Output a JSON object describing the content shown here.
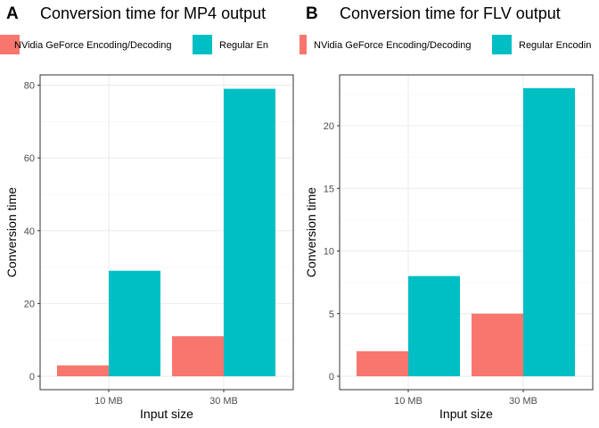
{
  "colors": {
    "nvidia": "#F8766D",
    "regular": "#00BFC4"
  },
  "chart_data": [
    {
      "tag": "A",
      "type": "bar",
      "title": "Conversion time for MP4 output",
      "xlabel": "Input size",
      "ylabel": "Conversion time",
      "categories": [
        "10 MB",
        "30 MB"
      ],
      "ylim": [
        0,
        80
      ],
      "yticks": [
        0,
        20,
        40,
        60,
        80
      ],
      "grid": true,
      "legend_position": "top",
      "series": [
        {
          "name": "NVidia GeForce Encoding/Decoding",
          "values": [
            3,
            11
          ]
        },
        {
          "name": "Regular En",
          "values": [
            29,
            79
          ]
        }
      ]
    },
    {
      "tag": "B",
      "type": "bar",
      "title": "Conversion time for FLV output",
      "xlabel": "Input size",
      "ylabel": "Conversion time",
      "categories": [
        "10 MB",
        "30 MB"
      ],
      "ylim": [
        0,
        23
      ],
      "yticks": [
        0,
        5,
        10,
        15,
        20
      ],
      "grid": true,
      "legend_position": "top",
      "series": [
        {
          "name": "NVidia GeForce Encoding/Decoding",
          "values": [
            2,
            5
          ]
        },
        {
          "name": "Regular Encodin",
          "values": [
            8,
            23
          ]
        }
      ]
    }
  ]
}
